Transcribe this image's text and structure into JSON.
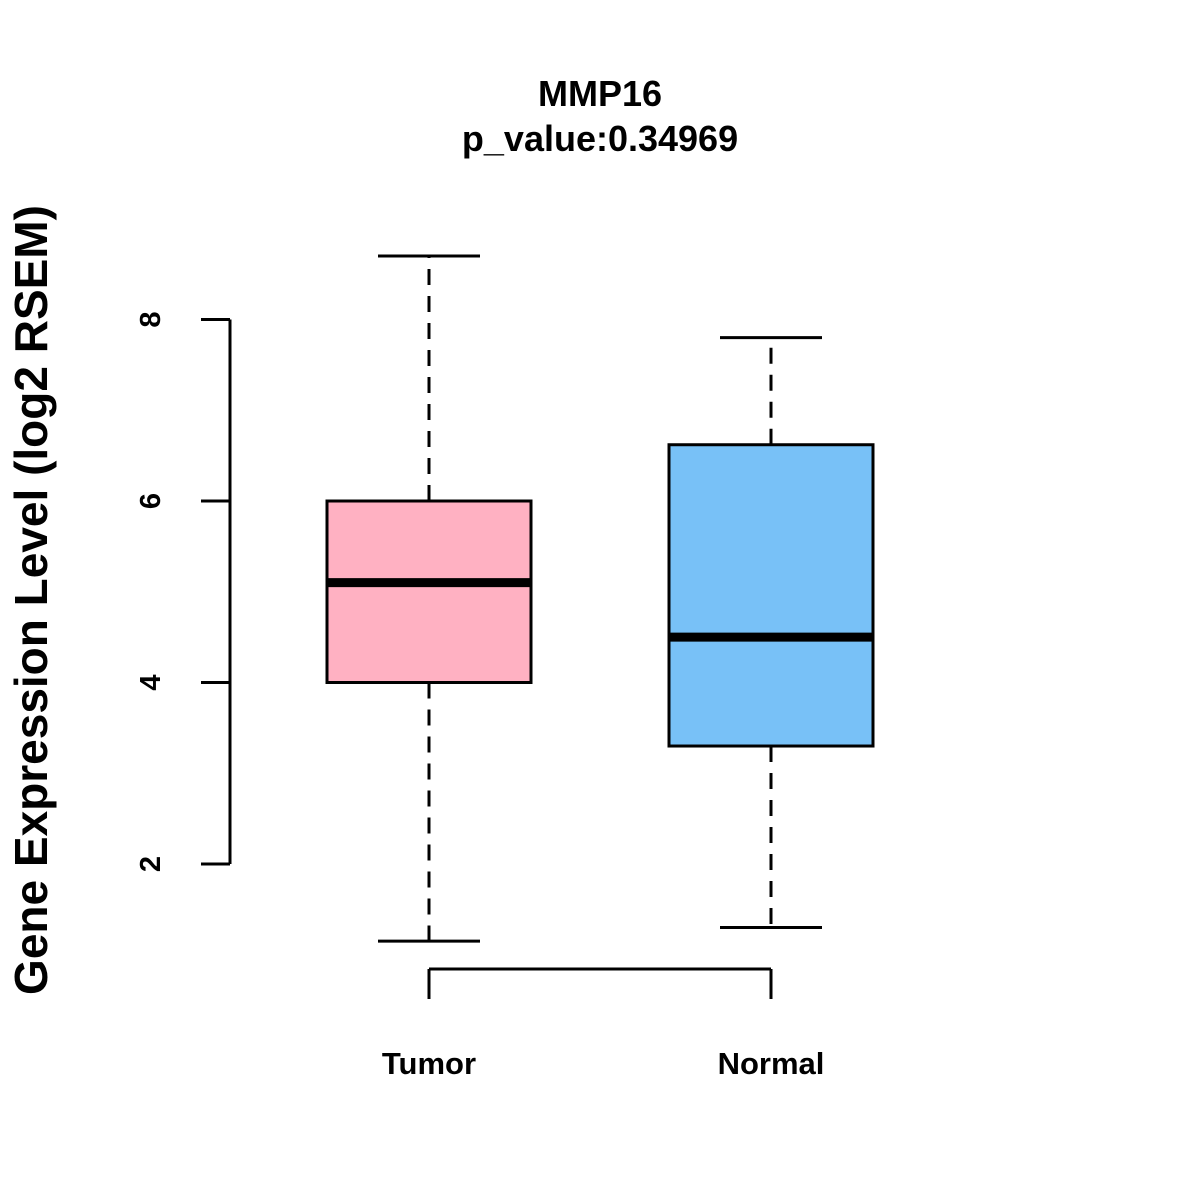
{
  "chart_data": {
    "type": "box",
    "title": "MMP16",
    "subtitle": "p_value:0.34969",
    "xlabel": "",
    "ylabel": "Gene Expression Level (log2 RSEM)",
    "yticks": [
      2,
      4,
      6,
      8
    ],
    "ylim": [
      0.6,
      9.2
    ],
    "grid": false,
    "categories": [
      "Tumor",
      "Normal"
    ],
    "boxes": [
      {
        "category": "Tumor",
        "whisker_low": 1.15,
        "q1": 4.0,
        "median": 5.1,
        "q3": 6.0,
        "whisker_high": 8.7,
        "color": "#FFB1C2"
      },
      {
        "category": "Normal",
        "whisker_low": 1.3,
        "q1": 3.3,
        "median": 4.5,
        "q3": 6.62,
        "whisker_high": 7.8,
        "color": "#78C1F7"
      }
    ]
  }
}
